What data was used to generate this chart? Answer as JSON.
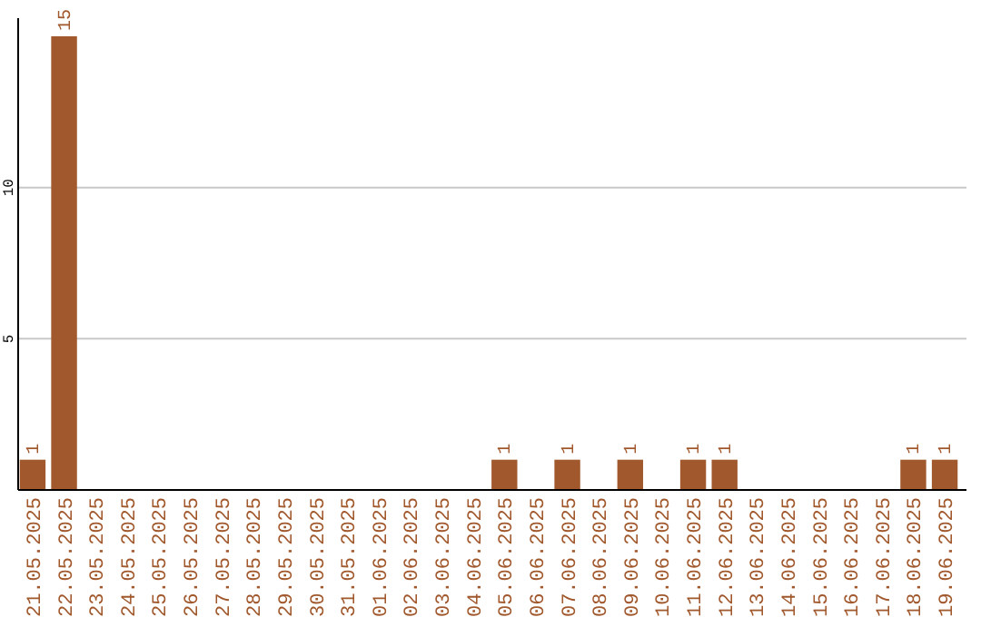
{
  "chart_data": {
    "type": "bar",
    "categories": [
      "21.05.2025",
      "22.05.2025",
      "23.05.2025",
      "24.05.2025",
      "25.05.2025",
      "26.05.2025",
      "27.05.2025",
      "28.05.2025",
      "29.05.2025",
      "30.05.2025",
      "31.05.2025",
      "01.06.2025",
      "02.06.2025",
      "03.06.2025",
      "04.06.2025",
      "05.06.2025",
      "06.06.2025",
      "07.06.2025",
      "08.06.2025",
      "09.06.2025",
      "10.06.2025",
      "11.06.2025",
      "12.06.2025",
      "13.06.2025",
      "14.06.2025",
      "15.06.2025",
      "16.06.2025",
      "17.06.2025",
      "18.06.2025",
      "19.06.2025"
    ],
    "values": [
      1,
      15,
      0,
      0,
      0,
      0,
      0,
      0,
      0,
      0,
      0,
      0,
      0,
      0,
      0,
      1,
      0,
      1,
      0,
      1,
      0,
      1,
      1,
      0,
      0,
      0,
      0,
      0,
      1,
      1
    ],
    "value_labels": [
      "1",
      "15",
      null,
      null,
      null,
      null,
      null,
      null,
      null,
      null,
      null,
      null,
      null,
      null,
      null,
      "1",
      null,
      "1",
      null,
      "1",
      null,
      "1",
      "1",
      null,
      null,
      null,
      null,
      null,
      "1",
      "1"
    ],
    "color": "#a0582c",
    "ylim": [
      0,
      15.6
    ],
    "yticks": [
      5,
      10
    ],
    "grid": "y"
  }
}
